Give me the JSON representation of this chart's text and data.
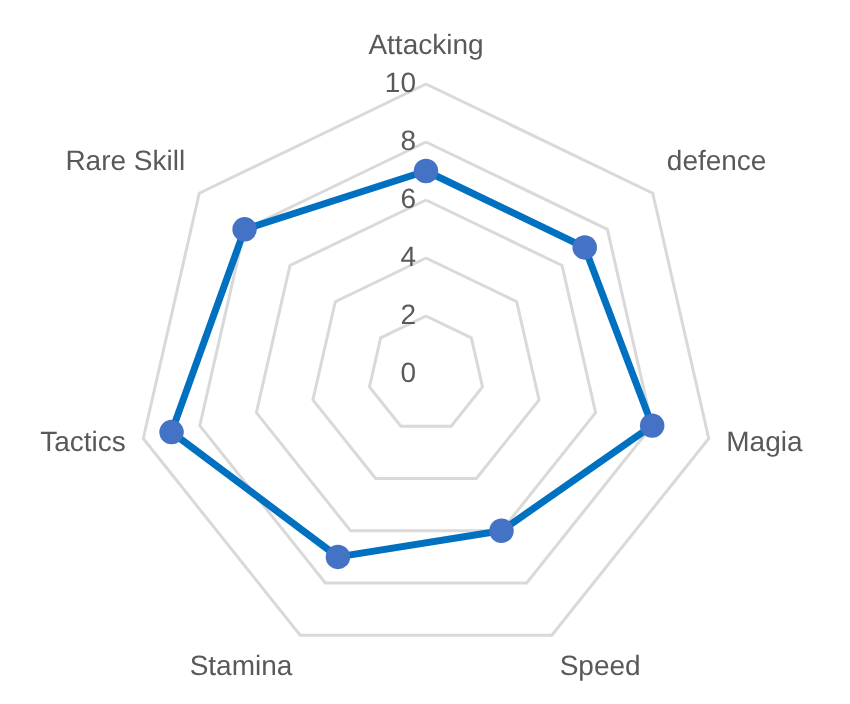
{
  "chart_data": {
    "type": "radar",
    "categories": [
      "Attacking",
      "defence",
      "Magia",
      "Speed",
      "Stamina",
      "Tactics",
      "Rare Skill"
    ],
    "series": [
      {
        "color": "#0070c0",
        "values": [
          7,
          7,
          8,
          6,
          7,
          9,
          8
        ]
      }
    ],
    "ylim": [
      0,
      10
    ],
    "yticks": [
      0,
      2,
      4,
      6,
      8,
      10
    ],
    "grid": true,
    "marker": "circle"
  }
}
